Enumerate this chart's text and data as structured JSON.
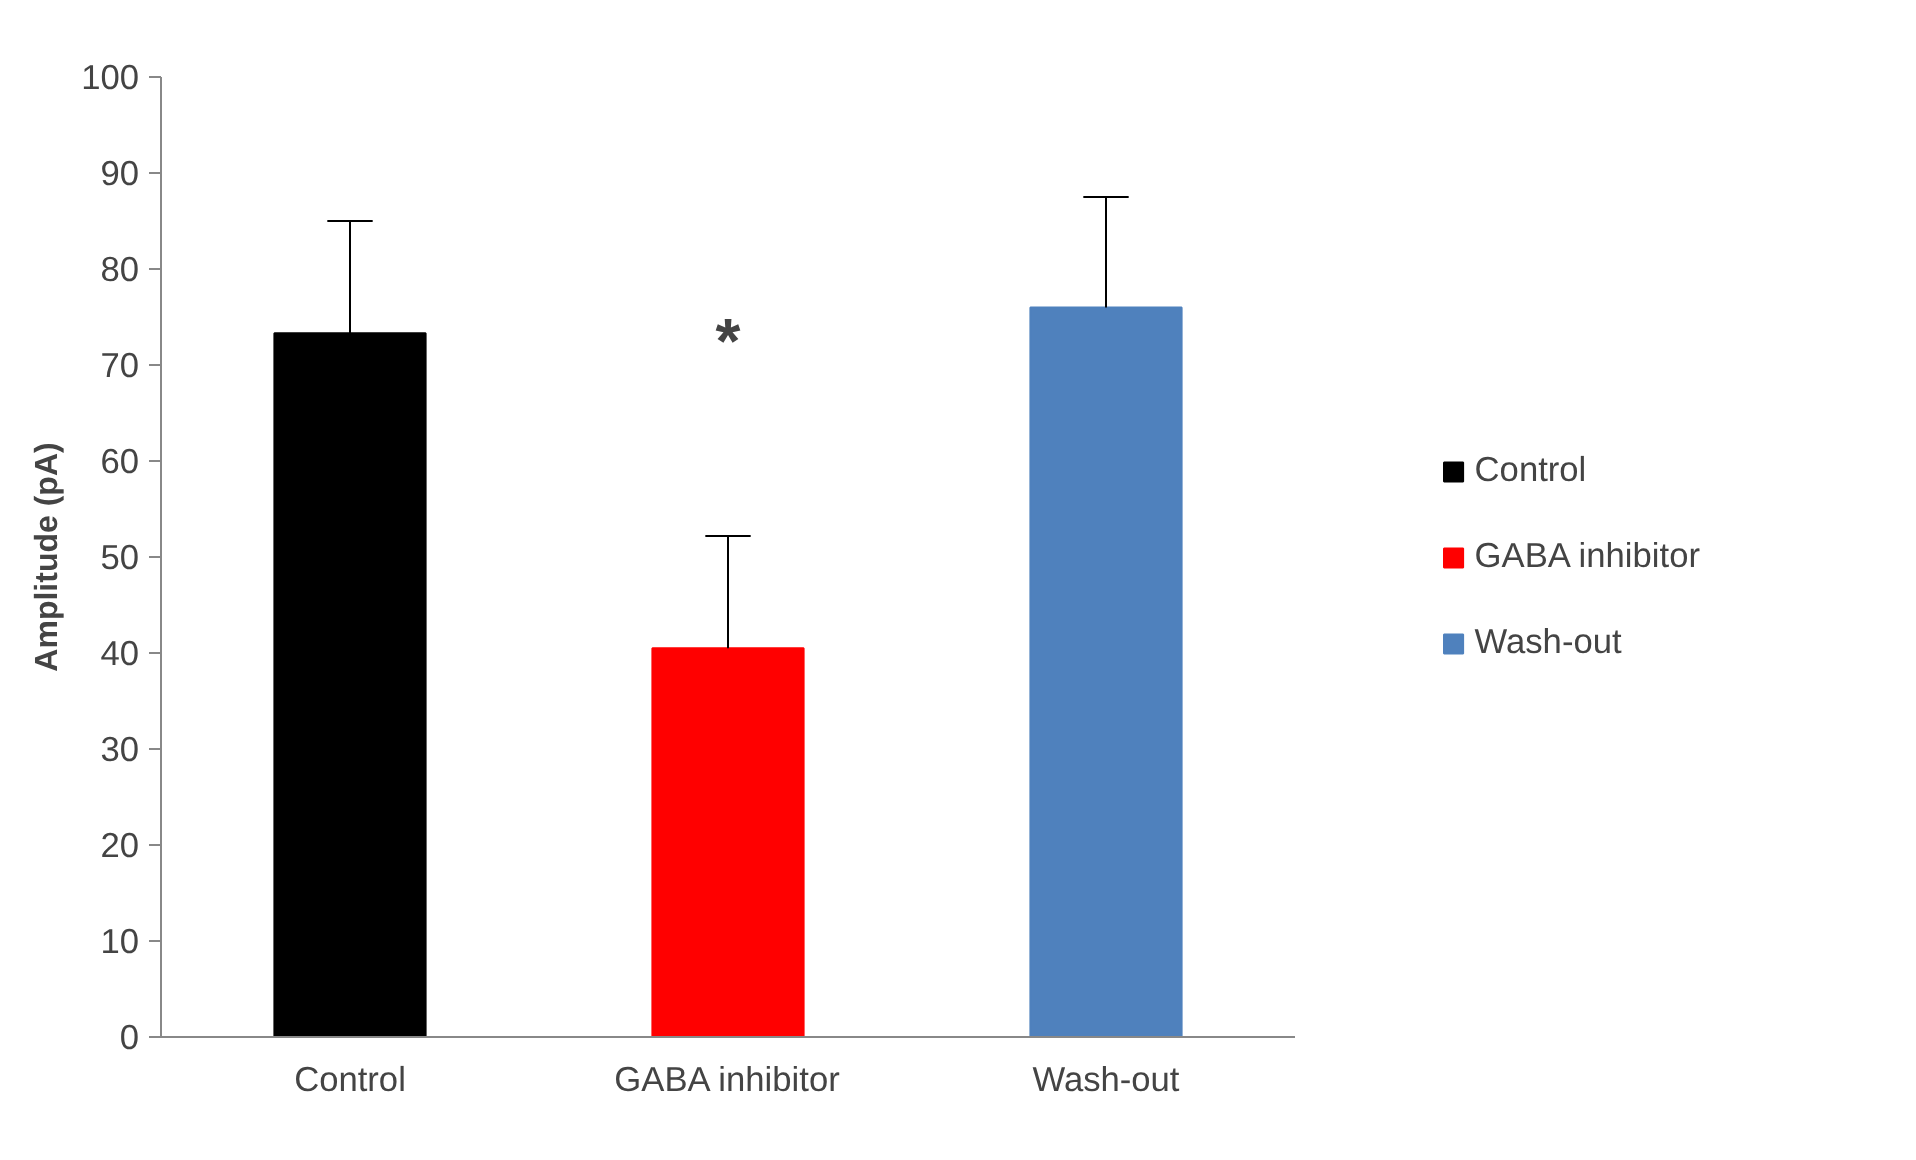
{
  "chart_data": {
    "type": "bar",
    "ylabel": "Amplitude (pA)",
    "categories": [
      "Control",
      "GABA inhibitor",
      "Wash-out"
    ],
    "series": [
      {
        "name": "Control",
        "color": "#000000",
        "values": [
          73.3,
          null,
          null
        ],
        "errors": [
          [
            73.3,
            85.0
          ],
          null,
          null
        ]
      },
      {
        "name": "GABA inhibitor",
        "color": "#ff0000",
        "values": [
          null,
          40.5,
          null
        ],
        "errors": [
          null,
          [
            40.5,
            52.2
          ],
          null
        ]
      },
      {
        "name": "Wash-out",
        "color": "#4f81bd",
        "values": [
          null,
          null,
          76.0
        ],
        "errors": [
          null,
          null,
          [
            76.0,
            87.5
          ]
        ]
      }
    ],
    "annotations": [
      "*"
    ],
    "ylim": [
      0,
      100
    ],
    "yticks": [
      0,
      10,
      20,
      30,
      40,
      50,
      60,
      70,
      80,
      90,
      100
    ],
    "grid": false,
    "legend": "right"
  }
}
